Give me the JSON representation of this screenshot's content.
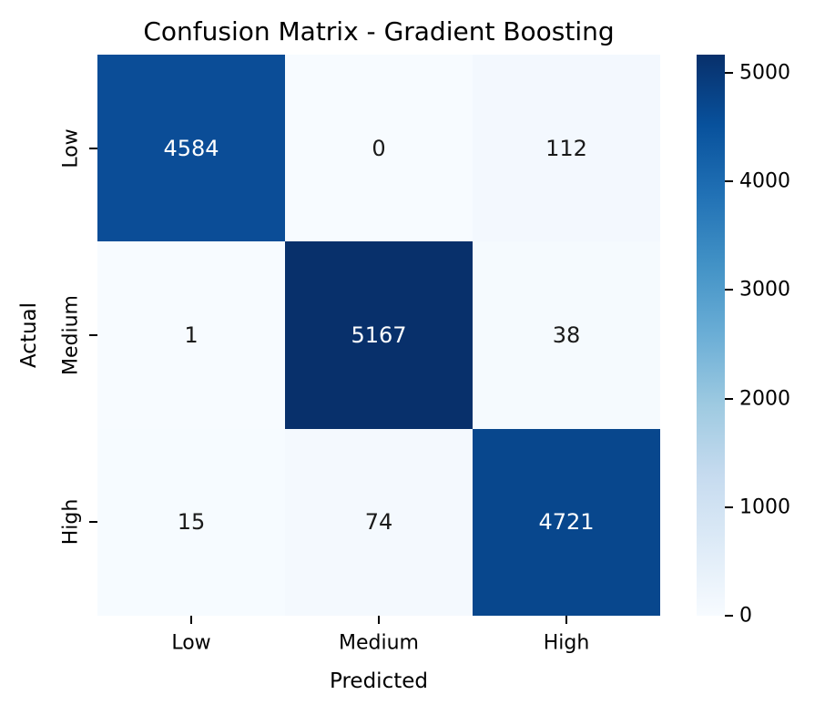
{
  "chart_data": {
    "type": "heatmap",
    "title": "Confusion Matrix - Gradient Boosting",
    "xlabel": "Predicted",
    "ylabel": "Actual",
    "x_categories": [
      "Low",
      "Medium",
      "High"
    ],
    "y_categories": [
      "Low",
      "Medium",
      "High"
    ],
    "matrix": [
      [
        4584,
        0,
        112
      ],
      [
        1,
        5167,
        38
      ],
      [
        15,
        74,
        4721
      ]
    ],
    "vmin": 0,
    "vmax": 5167,
    "colormap": "Blues",
    "grid": false,
    "colorbar_position": "right",
    "colorbar_ticks": [
      0,
      1000,
      2000,
      3000,
      4000,
      5000
    ],
    "colorbar_gradient_stops": [
      "#f7fbff",
      "#deebf7",
      "#c6dbef",
      "#9ecae1",
      "#6baed6",
      "#4292c6",
      "#2171b5",
      "#08519c",
      "#08306b"
    ],
    "cell_colors": [
      [
        "#0b4d97",
        "#f7fbff",
        "#f3f8fe"
      ],
      [
        "#f7fbff",
        "#08306b",
        "#f5fafe"
      ],
      [
        "#f6fbff",
        "#f4f9fe",
        "#08478d"
      ]
    ],
    "cell_text_colors": [
      [
        "#ffffff",
        "#1a1a1a",
        "#1a1a1a"
      ],
      [
        "#1a1a1a",
        "#ffffff",
        "#1a1a1a"
      ],
      [
        "#1a1a1a",
        "#1a1a1a",
        "#ffffff"
      ]
    ],
    "tick_color": "#000000",
    "background_color": "#ffffff"
  }
}
